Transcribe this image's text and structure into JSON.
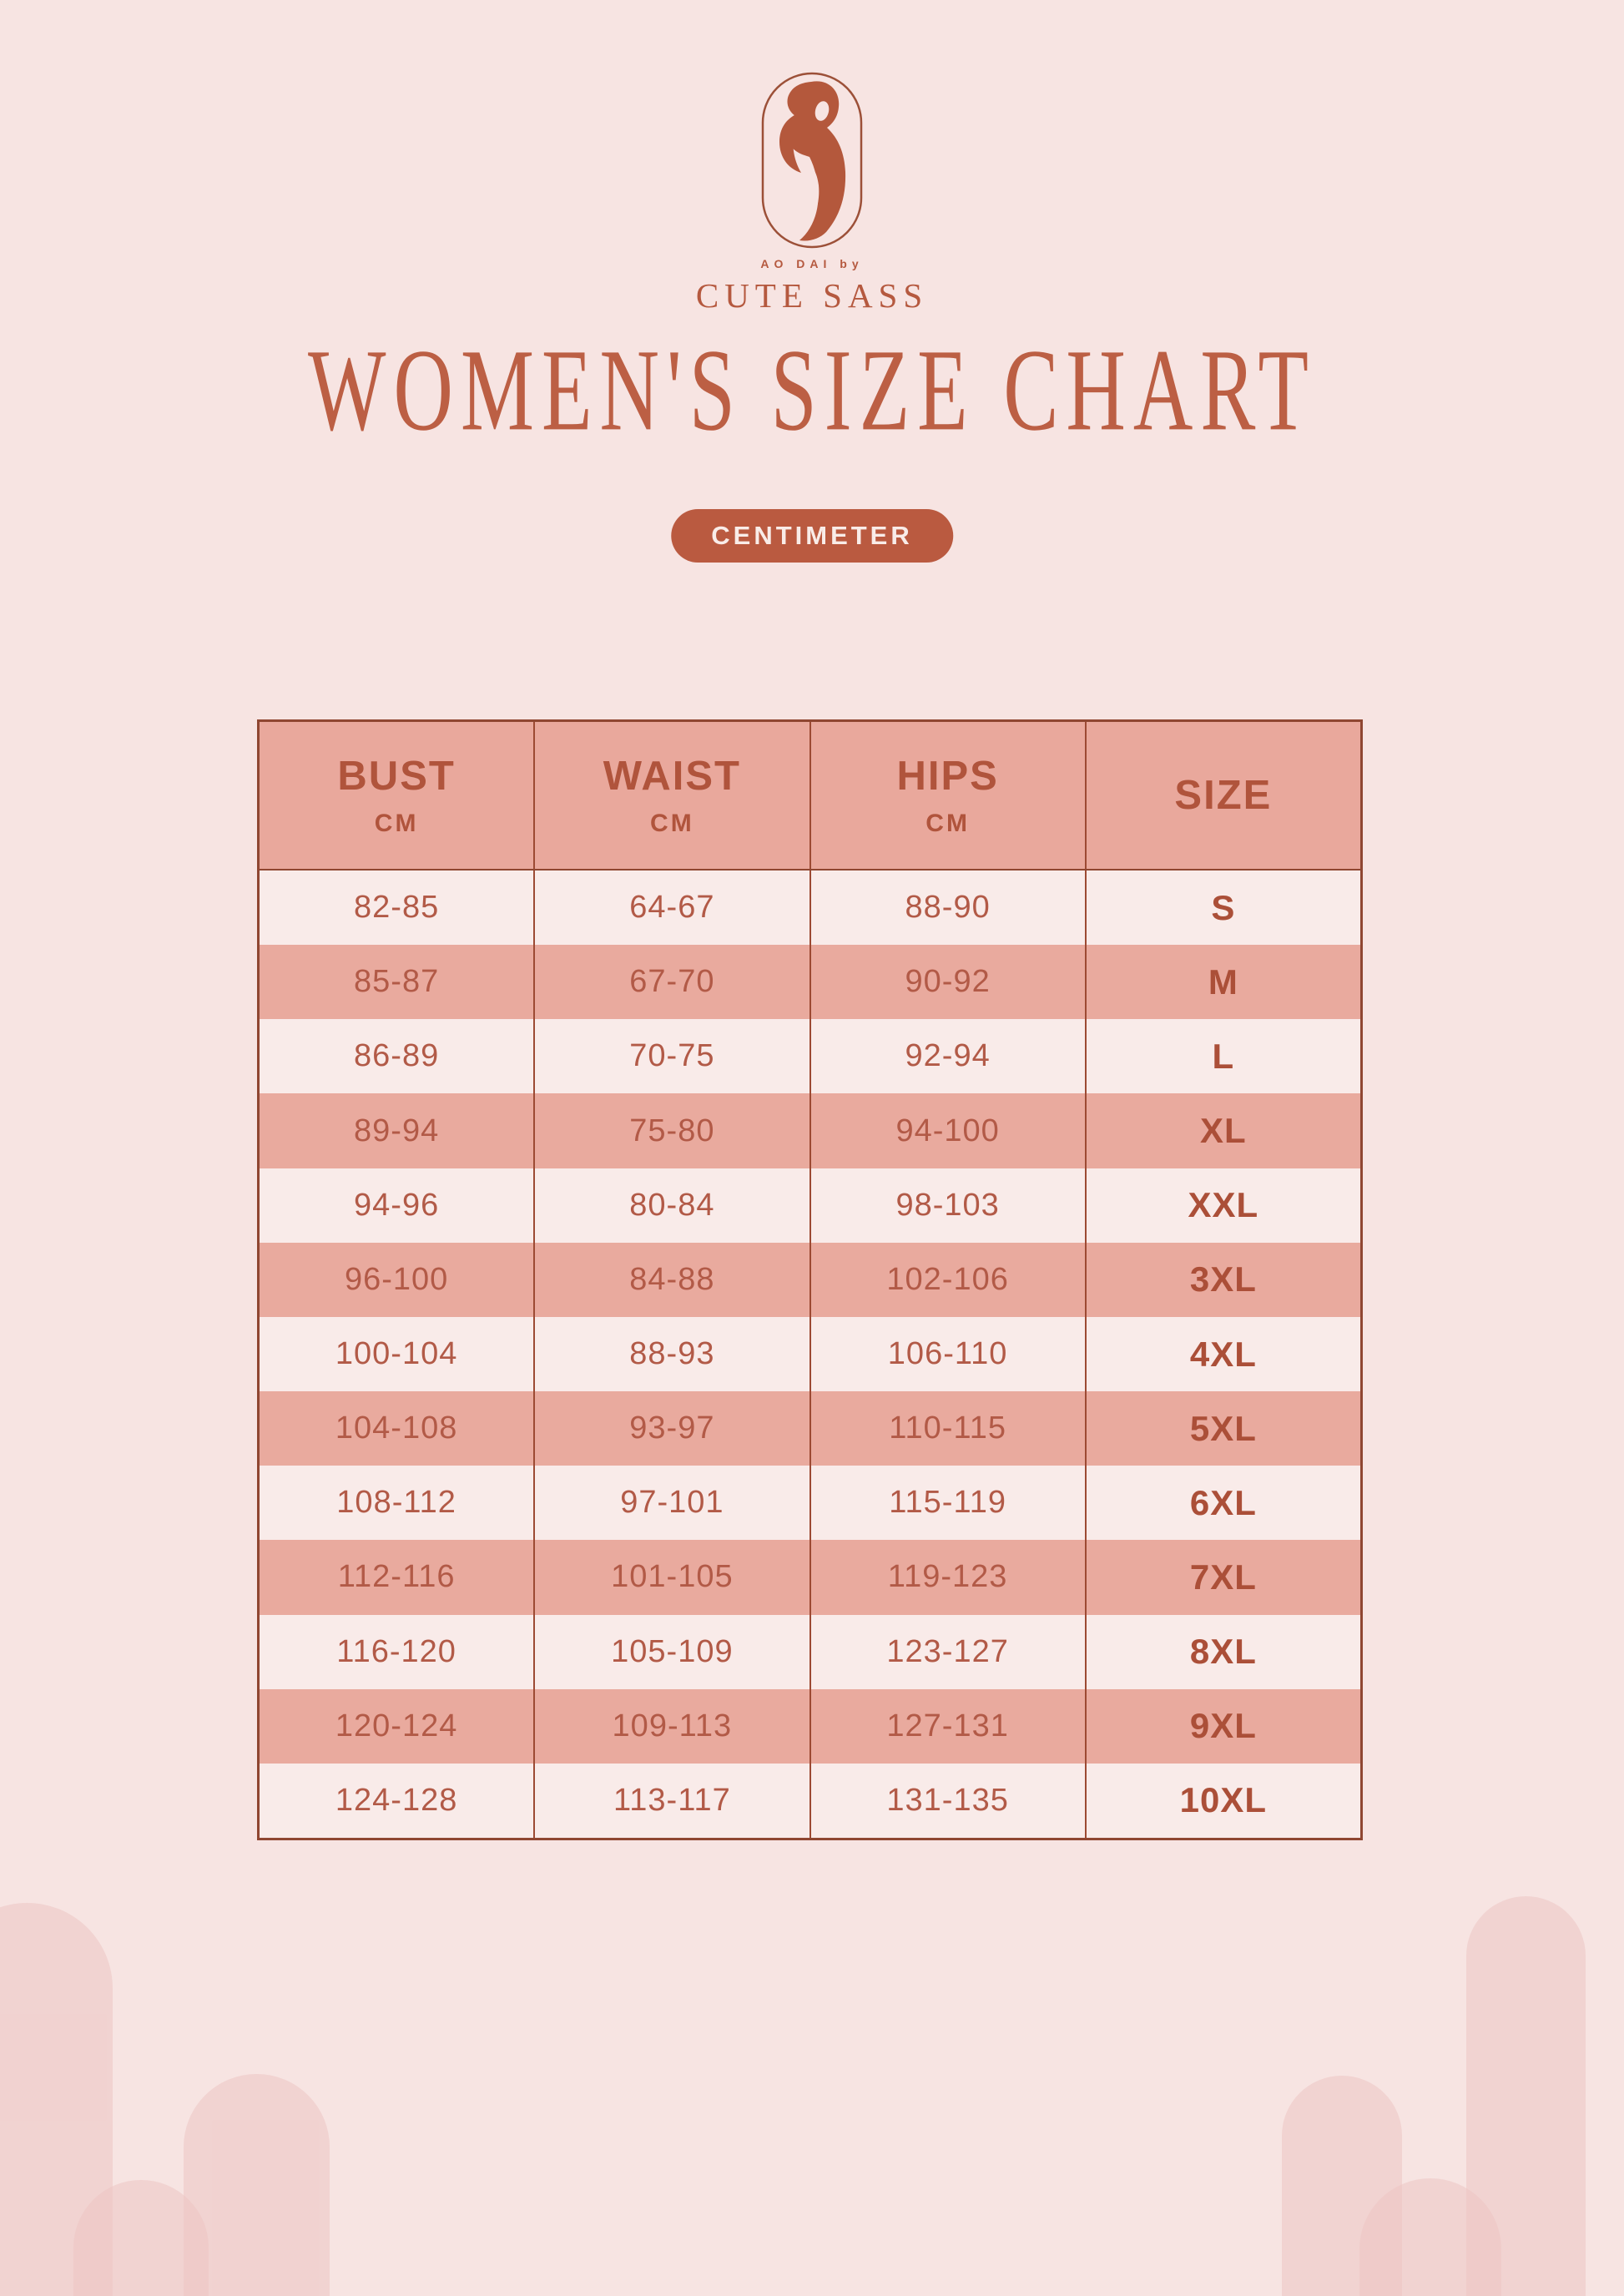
{
  "brand": {
    "tagline": "AO DAI by",
    "name": "CUTE SASS"
  },
  "page_title": "WOMEN'S SIZE CHART",
  "unit_badge": "CENTIMETER",
  "table": {
    "columns": [
      {
        "label": "BUST",
        "unit": "CM"
      },
      {
        "label": "WAIST",
        "unit": "CM"
      },
      {
        "label": "HIPS",
        "unit": "CM"
      },
      {
        "label": "SIZE",
        "unit": ""
      }
    ],
    "rows": [
      {
        "bust": "82-85",
        "waist": "64-67",
        "hips": "88-90",
        "size": "S"
      },
      {
        "bust": "85-87",
        "waist": "67-70",
        "hips": "90-92",
        "size": "M"
      },
      {
        "bust": "86-89",
        "waist": "70-75",
        "hips": "92-94",
        "size": "L"
      },
      {
        "bust": "89-94",
        "waist": "75-80",
        "hips": "94-100",
        "size": "XL"
      },
      {
        "bust": "94-96",
        "waist": "80-84",
        "hips": "98-103",
        "size": "XXL"
      },
      {
        "bust": "96-100",
        "waist": "84-88",
        "hips": "102-106",
        "size": "3XL"
      },
      {
        "bust": "100-104",
        "waist": "88-93",
        "hips": "106-110",
        "size": "4XL"
      },
      {
        "bust": "104-108",
        "waist": "93-97",
        "hips": "110-115",
        "size": "5XL"
      },
      {
        "bust": "108-112",
        "waist": "97-101",
        "hips": "115-119",
        "size": "6XL"
      },
      {
        "bust": "112-116",
        "waist": "101-105",
        "hips": "119-123",
        "size": "7XL"
      },
      {
        "bust": "116-120",
        "waist": "105-109",
        "hips": "123-127",
        "size": "8XL"
      },
      {
        "bust": "120-124",
        "waist": "109-113",
        "hips": "127-131",
        "size": "9XL"
      },
      {
        "bust": "124-128",
        "waist": "113-117",
        "hips": "131-135",
        "size": "10XL"
      }
    ]
  },
  "colors": {
    "background": "#f7e4e2",
    "accent": "#b5593f",
    "header_fill": "#e9a89c",
    "row_alt_fill": "#e9aa9e",
    "row_light_fill": "#f9ebe9",
    "table_border": "#8f4631",
    "badge_fill": "#ba5a40",
    "badge_text": "#f9ece8"
  },
  "icons": {
    "logo": "woman-in-ao-dai-oval-logo"
  }
}
